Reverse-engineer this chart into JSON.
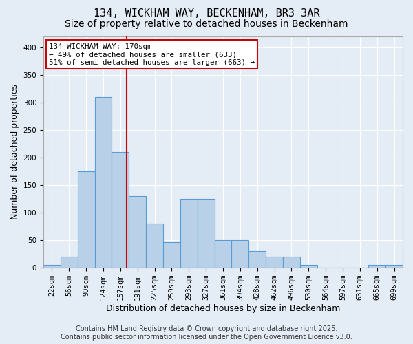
{
  "title_line1": "134, WICKHAM WAY, BECKENHAM, BR3 3AR",
  "title_line2": "Size of property relative to detached houses in Beckenham",
  "xlabel": "Distribution of detached houses by size in Beckenham",
  "ylabel": "Number of detached properties",
  "bin_labels": [
    "22sqm",
    "56sqm",
    "90sqm",
    "124sqm",
    "157sqm",
    "191sqm",
    "225sqm",
    "259sqm",
    "293sqm",
    "327sqm",
    "361sqm",
    "394sqm",
    "428sqm",
    "462sqm",
    "496sqm",
    "530sqm",
    "564sqm",
    "597sqm",
    "631sqm",
    "665sqm",
    "699sqm"
  ],
  "bar_values": [
    5,
    20,
    175,
    310,
    210,
    130,
    80,
    47,
    125,
    125,
    50,
    50,
    30,
    20,
    20,
    5,
    0,
    0,
    0,
    5,
    5
  ],
  "bar_color": "#b8d0e8",
  "bar_edge_color": "#5b9bd5",
  "background_color": "#e4ecf5",
  "grid_color": "#ffffff",
  "red_line_x": 4.37,
  "red_line_color": "#cc0000",
  "annotation_line1": "134 WICKHAM WAY: 170sqm",
  "annotation_line2": "← 49% of detached houses are smaller (633)",
  "annotation_line3": "51% of semi-detached houses are larger (663) →",
  "annotation_box_color": "#ffffff",
  "annotation_border_color": "#cc0000",
  "ylim": [
    0,
    420
  ],
  "yticks": [
    0,
    50,
    100,
    150,
    200,
    250,
    300,
    350,
    400
  ],
  "footer_line1": "Contains HM Land Registry data © Crown copyright and database right 2025.",
  "footer_line2": "Contains public sector information licensed under the Open Government Licence v3.0.",
  "title_fontsize": 11,
  "subtitle_fontsize": 10,
  "axis_label_fontsize": 9,
  "tick_fontsize": 7.5,
  "footer_fontsize": 7
}
